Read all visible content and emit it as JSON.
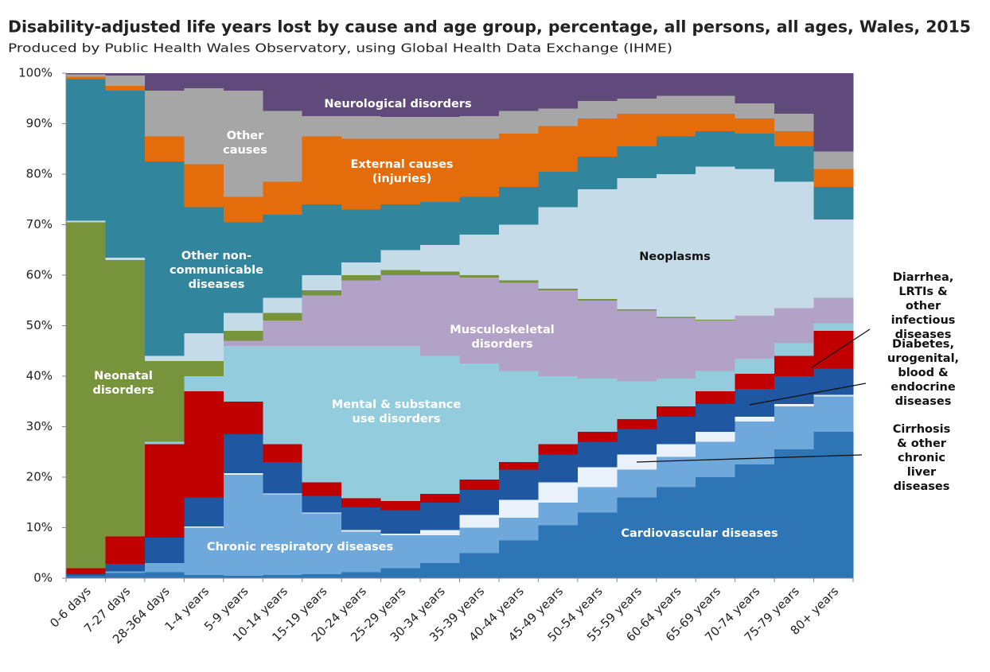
{
  "chart_data": {
    "type": "stacked-area",
    "title": "Disability-adjusted life years lost by cause and age group, percentage, all persons, all ages, Wales, 2015",
    "subtitle": "Produced by Public Health Wales Observatory, using Global Health Data Exchange (IHME)",
    "categories": [
      "0-6 days",
      "7-27 days",
      "28-364 days",
      "1-4 years",
      "5-9 years",
      "10-14 years",
      "15-19 years",
      "20-24 years",
      "25-29 years",
      "30-34 years",
      "35-39 years",
      "40-44 years",
      "45-49 years",
      "50-54 years",
      "55-59 years",
      "60-64 years",
      "65-69 years",
      "70-74 years",
      "75-79 years",
      "80+ years"
    ],
    "ylim": [
      0,
      100
    ],
    "yticks": [
      {
        "value": 0,
        "label": "0%"
      },
      {
        "value": 10,
        "label": "10%"
      },
      {
        "value": 20,
        "label": "20%"
      },
      {
        "value": 30,
        "label": "30%"
      },
      {
        "value": 40,
        "label": "40%"
      },
      {
        "value": 50,
        "label": "50%"
      },
      {
        "value": 60,
        "label": "60%"
      },
      {
        "value": 70,
        "label": "70%"
      },
      {
        "value": 80,
        "label": "80%"
      },
      {
        "value": 90,
        "label": "90%"
      },
      {
        "value": 100,
        "label": "100%"
      }
    ],
    "grid": false,
    "series": [
      {
        "name": "Cardiovascular diseases",
        "color": "#2e75b6",
        "values": [
          0.5,
          1,
          1.2,
          0.6,
          0.5,
          0.6,
          0.8,
          1.2,
          2,
          3,
          5,
          7.5,
          10.5,
          13,
          16,
          18,
          20,
          22.5,
          25.5,
          29
        ]
      },
      {
        "name": "Chronic respiratory diseases",
        "color": "#6fa9dc",
        "values": [
          0,
          0.3,
          1.8,
          9.4,
          20,
          16,
          12,
          8,
          6.5,
          5.5,
          5,
          4.5,
          4.5,
          5,
          5.5,
          6,
          7,
          8.5,
          8.5,
          7
        ]
      },
      {
        "name": "Cirrhosis & other\nchronic liver\ndiseases",
        "color": "#e9f1fa",
        "values": [
          0,
          0,
          0,
          0.2,
          0.3,
          0.2,
          0.2,
          0.3,
          0.3,
          1,
          2.5,
          3.5,
          4,
          4,
          3,
          2.5,
          2,
          1,
          0.5,
          0.3
        ]
      },
      {
        "name": "Diabetes,\nurogenital, blood &\nendocrine diseases",
        "color": "#1f57a0",
        "values": [
          0.3,
          1.5,
          5,
          5.8,
          7.7,
          6.2,
          3.3,
          4.5,
          4.7,
          5.5,
          5,
          6,
          5.5,
          5,
          5,
          5.5,
          5.5,
          5.5,
          5.5,
          5.2
        ]
      },
      {
        "name": "Diarrhea, LRTIs &\nother infectious\ndiseases",
        "color": "#c00000",
        "values": [
          1.2,
          5.5,
          18.5,
          21,
          6.5,
          3.5,
          2.7,
          1.8,
          1.8,
          1.7,
          2,
          1.5,
          2,
          2,
          2,
          2,
          2.5,
          3,
          4,
          7.5
        ]
      },
      {
        "name": "Mental & substance\nuse disorders",
        "color": "#93cddd",
        "values": [
          0,
          0,
          0.5,
          3,
          11,
          19.5,
          27,
          30.2,
          30.7,
          27.3,
          23,
          18,
          13.5,
          10.5,
          7.5,
          5.5,
          4,
          3,
          2.5,
          1.5
        ]
      },
      {
        "name": "Musculoskeletal\ndisorders",
        "color": "#b3a2c7",
        "values": [
          0,
          0,
          0,
          0,
          1,
          5,
          10,
          13,
          14,
          16,
          17,
          17.5,
          17,
          15.5,
          14,
          12,
          10,
          8.5,
          7,
          5
        ]
      },
      {
        "name": "Neonatal\ndisorders",
        "color": "#77933c",
        "values": [
          68.5,
          54.7,
          16,
          3,
          2,
          1.5,
          1,
          1,
          1,
          0.7,
          0.5,
          0.5,
          0.3,
          0.3,
          0.2,
          0.2,
          0.2,
          0,
          0,
          0
        ]
      },
      {
        "name": "Neoplasms",
        "color": "#c6dbe8",
        "values": [
          0.3,
          0.5,
          1,
          5.5,
          3.5,
          3,
          3,
          2.5,
          4,
          5.3,
          8,
          11,
          16.2,
          21.7,
          26,
          28.3,
          30.3,
          29,
          25,
          15.5
        ]
      },
      {
        "name": "Other non-\ncommunicable\ndiseases",
        "color": "#31859c",
        "values": [
          28,
          33,
          38.5,
          25,
          18,
          16.5,
          14,
          10.5,
          9,
          8.5,
          7.5,
          7.5,
          7,
          6.5,
          6.3,
          7.5,
          7,
          7,
          7,
          6.5
        ]
      },
      {
        "name": "External causes\n(injuries)",
        "color": "#e46c0a",
        "values": [
          0.5,
          1,
          5,
          8.5,
          5,
          6.5,
          13.5,
          14,
          13,
          12.5,
          11.5,
          10.5,
          9,
          7.5,
          6.5,
          4.5,
          3.5,
          3,
          3,
          3.5
        ]
      },
      {
        "name": "Other\ncauses",
        "color": "#a6a6a6",
        "values": [
          0.5,
          2,
          9,
          15,
          21,
          14,
          4,
          4.5,
          4.3,
          4.3,
          4.5,
          4.5,
          3.5,
          3.5,
          3,
          3.5,
          3.5,
          3,
          3.5,
          3.5
        ]
      },
      {
        "name": "Neurological disorders",
        "color": "#604a7b",
        "values": [
          0.2,
          0.5,
          3.5,
          3,
          3.5,
          7.5,
          8.5,
          8.5,
          8.7,
          8.7,
          8.5,
          7.5,
          7,
          5.5,
          5,
          4.5,
          4.5,
          6,
          8,
          15.5
        ]
      }
    ]
  }
}
